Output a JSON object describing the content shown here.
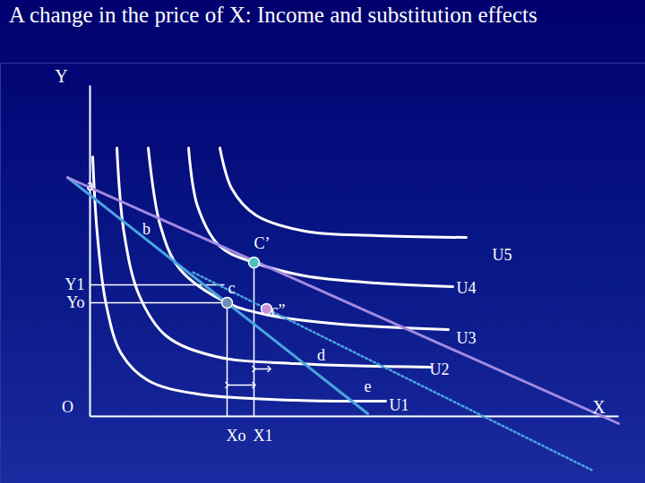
{
  "chart_data": {
    "type": "line",
    "title": "A change in the price of X: Income and substitution effects",
    "x_label": "X",
    "y_label": "Y",
    "xlim": [
      -10,
      62
    ],
    "ylim": [
      -7.5,
      39.5
    ],
    "tick_labels": false,
    "grid": false,
    "axes": {
      "x": [
        [
          0,
          0
        ],
        [
          59,
          0
        ]
      ],
      "y": [
        [
          0,
          0
        ],
        [
          0,
          37
        ]
      ]
    },
    "series": [
      {
        "name": "U1",
        "color": "#ffffff",
        "line_style": "solid",
        "label_at": [
          34.5,
          1.2
        ],
        "values": [
          [
            0.3,
            29
          ],
          [
            0.8,
            20.5
          ],
          [
            1.8,
            12.5
          ],
          [
            3.5,
            7
          ],
          [
            6.5,
            4
          ],
          [
            12,
            2.5
          ],
          [
            23,
            1.8
          ],
          [
            33,
            1.7
          ]
        ]
      },
      {
        "name": "U2",
        "color": "#ffffff",
        "line_style": "solid",
        "label_at": [
          39,
          5.2
        ],
        "values": [
          [
            3,
            30
          ],
          [
            3.8,
            20.5
          ],
          [
            5.5,
            13.5
          ],
          [
            8.5,
            9
          ],
          [
            14,
            6.7
          ],
          [
            23,
            5.9
          ],
          [
            38,
            5.5
          ]
        ]
      },
      {
        "name": "U3",
        "color": "#ffffff",
        "line_style": "solid",
        "label_at": [
          42,
          8.7
        ],
        "values": [
          [
            6.5,
            30
          ],
          [
            7.8,
            21.5
          ],
          [
            10,
            16.5
          ],
          [
            15.3,
            12.7
          ],
          [
            20,
            11.3
          ],
          [
            28,
            10.3
          ],
          [
            40,
            9.7
          ]
        ]
      },
      {
        "name": "U4",
        "color": "#ffffff",
        "line_style": "solid",
        "label_at": [
          42,
          14.3
        ],
        "values": [
          [
            11,
            30
          ],
          [
            12,
            23.5
          ],
          [
            14.5,
            19
          ],
          [
            18.3,
            17.2
          ],
          [
            24,
            15.7
          ],
          [
            32,
            14.9
          ],
          [
            40.5,
            14.5
          ]
        ]
      },
      {
        "name": "U5",
        "color": "#ffffff",
        "line_style": "solid",
        "label_at": [
          46,
          18
        ],
        "values": [
          [
            14.5,
            30
          ],
          [
            15.8,
            25.5
          ],
          [
            18.5,
            22.5
          ],
          [
            24,
            20.7
          ],
          [
            32,
            20.2
          ],
          [
            42,
            20
          ]
        ]
      },
      {
        "color": "#4aa3df",
        "line_style": "solid",
        "values": [
          [
            -2.5,
            26.7
          ],
          [
            31,
            0.3
          ]
        ]
      },
      {
        "color": "#a48ae0",
        "line_style": "solid",
        "values": [
          [
            -2.5,
            26.7
          ],
          [
            59,
            -0.8
          ]
        ]
      },
      {
        "color": "#4aa3df",
        "line_style": "dotted",
        "values": [
          [
            11.5,
            16.1
          ],
          [
            56,
            -6
          ]
        ]
      }
    ],
    "points": [
      {
        "label": "c",
        "x": 15.3,
        "y": 12.7,
        "color": "#6f8fb8",
        "label_at": [
          15.8,
          14.3
        ]
      },
      {
        "label": "C’",
        "x": 18.3,
        "y": 17.2,
        "color": "#4fc0c0",
        "label_at": [
          19.2,
          19.3
        ]
      },
      {
        "label": "c”",
        "x": 19.7,
        "y": 12,
        "color": "#c890d8",
        "label_at": [
          21,
          11.8
        ]
      }
    ],
    "annotations": [
      {
        "text": "a",
        "x": 0,
        "y": 25.8
      },
      {
        "text": "b",
        "x": 6.3,
        "y": 20.9
      },
      {
        "text": "d",
        "x": 25.8,
        "y": 6.8
      },
      {
        "text": "e",
        "x": 31,
        "y": 3.3
      },
      {
        "text": "O",
        "x": -2.5,
        "y": 1
      }
    ],
    "y_marks": [
      {
        "label": "Y1",
        "value": 14.7,
        "to": 15
      },
      {
        "label": "Yo",
        "value": 12.7,
        "to": 15.3
      }
    ],
    "x_marks": [
      {
        "label": "Xo",
        "value": 15.3,
        "to": 12.7
      },
      {
        "label": "X1",
        "value": 18.3,
        "to": 17.2
      }
    ],
    "arrows": [
      [
        15.3,
        3.5,
        18.3,
        3.5
      ],
      [
        18.3,
        5.3,
        20,
        5.3
      ]
    ]
  }
}
